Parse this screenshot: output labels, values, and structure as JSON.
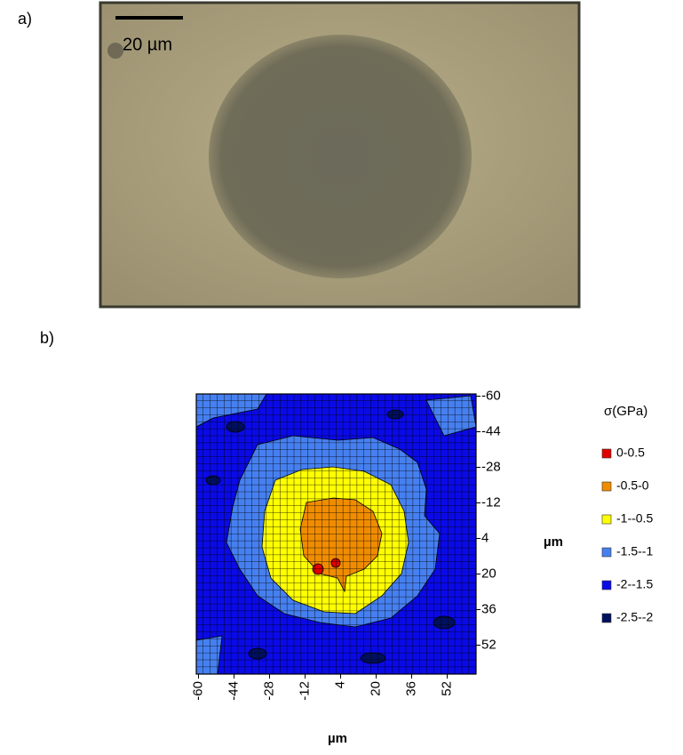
{
  "panel_a": {
    "label": "a)",
    "scale_bar": "20 µm"
  },
  "panel_b": {
    "label": "b)",
    "x_label": "µm",
    "y_label": "µm",
    "xlim": [
      -61,
      65
    ],
    "ylim": [
      -61,
      65
    ],
    "xticks": [
      -60,
      -44,
      -28,
      -12,
      4,
      20,
      36,
      52
    ],
    "yticks": [
      -60,
      -44,
      -28,
      -12,
      4,
      20,
      36,
      52
    ],
    "legend": {
      "title": "σ(GPa)",
      "items": [
        {
          "label": "0-0.5",
          "color": "#e00000"
        },
        {
          "label": "-0.5-0",
          "color": "#f08c00"
        },
        {
          "label": "-1--0.5",
          "color": "#ffff00"
        },
        {
          "label": "-1.5--1",
          "color": "#4680f0"
        },
        {
          "label": "-2--1.5",
          "color": "#0a0ae6"
        },
        {
          "label": "-2.5--2",
          "color": "#00105e"
        }
      ]
    }
  }
}
